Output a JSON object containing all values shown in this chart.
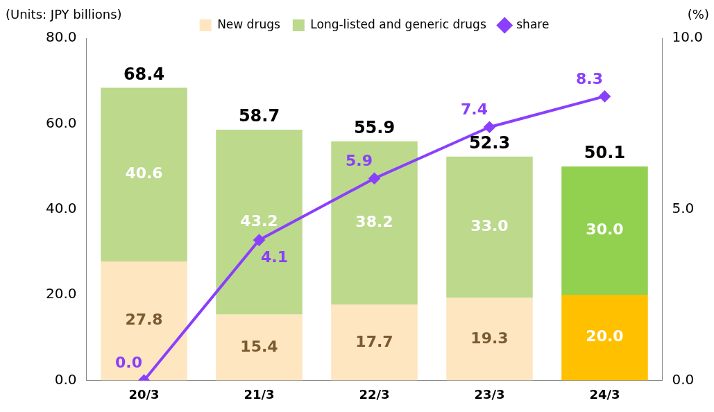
{
  "chart_data": {
    "type": "bar",
    "ylabel": "(Units: JPY billions)",
    "y2label": "(%)",
    "categories": [
      "20/3",
      "21/3",
      "22/3",
      "23/3",
      "24/3"
    ],
    "stacked": true,
    "legend": "top",
    "grid": false,
    "marker": "diamond",
    "series": [
      {
        "name": "New drugs",
        "color": "#fde6c0",
        "colors": [
          "#fde6c0",
          "#fde6c0",
          "#fde6c0",
          "#fde6c0",
          "#ffc000"
        ],
        "values": [
          27.8,
          15.4,
          17.7,
          19.3,
          20.0
        ],
        "value_labels": [
          "27.8",
          "15.4",
          "17.7",
          "19.3",
          "20.0"
        ]
      },
      {
        "name": "Long-listed and generic drugs",
        "color": "#bcd98c",
        "colors": [
          "#bcd98c",
          "#bcd98c",
          "#bcd98c",
          "#bcd98c",
          "#92d050"
        ],
        "values": [
          40.6,
          43.2,
          38.2,
          33.0,
          30.0
        ],
        "value_labels": [
          "40.6",
          "43.2",
          "38.2",
          "33.0",
          "30.0"
        ]
      },
      {
        "name": "share",
        "type": "line",
        "axis": "y2",
        "color": "#8a3ffc",
        "values": [
          0.0,
          4.1,
          5.9,
          7.4,
          8.3
        ],
        "value_labels": [
          "0.0",
          "4.1",
          "5.9",
          "7.4",
          "8.3"
        ]
      }
    ],
    "totals": [
      "68.4",
      "58.7",
      "55.9",
      "52.3",
      "50.1"
    ],
    "ylim": [
      0,
      80
    ],
    "yticks": [
      {
        "value": 0,
        "label": "0.0"
      },
      {
        "value": 20,
        "label": "20.0"
      },
      {
        "value": 40,
        "label": "40.0"
      },
      {
        "value": 60,
        "label": "60.0"
      },
      {
        "value": 80,
        "label": "80.0"
      }
    ],
    "y2lim": [
      0,
      10
    ],
    "y2ticks": [
      {
        "value": 0,
        "label": "0.0"
      },
      {
        "value": 5,
        "label": "5.0"
      },
      {
        "value": 10,
        "label": "10.0"
      }
    ]
  }
}
